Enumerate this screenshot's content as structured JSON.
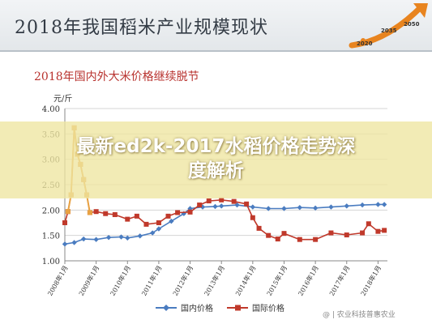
{
  "header": {
    "title": "2018年我国稻米产业规模现状"
  },
  "logo": {
    "years": [
      "2050",
      "2035",
      "2020"
    ]
  },
  "banner": {
    "line1": "最新ed2k-2017水稻价格走势深",
    "line2": "度解析"
  },
  "watermark": {
    "text": "@ | 农业科技普惠农业"
  },
  "colors": {
    "domestic": "#4a7cc0",
    "international": "#c0392b",
    "highlight": "#e8a243"
  },
  "chart_data": {
    "type": "line",
    "title": "2018年国内外大米价格继续脱节",
    "ylabel": "元/斤",
    "ylim": [
      1.0,
      4.0
    ],
    "yticks": [
      "1.00",
      "1.50",
      "2.00",
      "2.50",
      "3.00",
      "3.50",
      "4.00"
    ],
    "xticks": [
      "2008年1月",
      "2009年1月",
      "2010年1月",
      "2011年1月",
      "2012年1月",
      "2013年1月",
      "2014年1月",
      "2015年1月",
      "2016年1月",
      "2017年1月",
      "2018年1月"
    ],
    "legend_position": "bottom",
    "series": [
      {
        "name": "国内价格",
        "x": [
          2008.0,
          2008.3,
          2008.6,
          2009.0,
          2009.4,
          2009.8,
          2010.0,
          2010.4,
          2010.8,
          2011.0,
          2011.4,
          2011.8,
          2012.0,
          2012.4,
          2012.8,
          2013.0,
          2013.5,
          2014.0,
          2014.5,
          2015.0,
          2015.5,
          2016.0,
          2016.5,
          2017.0,
          2017.5,
          2018.0,
          2018.2
        ],
        "values": [
          1.33,
          1.36,
          1.43,
          1.42,
          1.46,
          1.47,
          1.45,
          1.49,
          1.55,
          1.63,
          1.78,
          1.93,
          2.03,
          2.06,
          2.07,
          2.08,
          2.1,
          2.06,
          2.03,
          2.03,
          2.05,
          2.04,
          2.06,
          2.08,
          2.1,
          2.11,
          2.11
        ]
      },
      {
        "name": "国际价格",
        "x": [
          2008.0,
          2008.1,
          2008.2,
          2008.3,
          2008.4,
          2008.5,
          2008.6,
          2008.7,
          2008.8,
          2009.0,
          2009.3,
          2009.6,
          2010.0,
          2010.3,
          2010.6,
          2011.0,
          2011.3,
          2011.6,
          2012.0,
          2012.3,
          2012.6,
          2013.0,
          2013.4,
          2013.8,
          2014.0,
          2014.2,
          2014.5,
          2014.8,
          2015.0,
          2015.5,
          2016.0,
          2016.5,
          2017.0,
          2017.5,
          2017.7,
          2018.0,
          2018.2
        ],
        "values": [
          1.75,
          1.97,
          2.3,
          3.62,
          3.1,
          2.9,
          2.6,
          2.3,
          1.95,
          1.97,
          1.93,
          1.91,
          1.82,
          1.88,
          1.72,
          1.75,
          1.88,
          1.95,
          1.96,
          2.1,
          2.18,
          2.2,
          2.17,
          2.12,
          1.85,
          1.64,
          1.5,
          1.43,
          1.54,
          1.42,
          1.42,
          1.55,
          1.51,
          1.55,
          1.73,
          1.58,
          1.6
        ]
      }
    ]
  }
}
